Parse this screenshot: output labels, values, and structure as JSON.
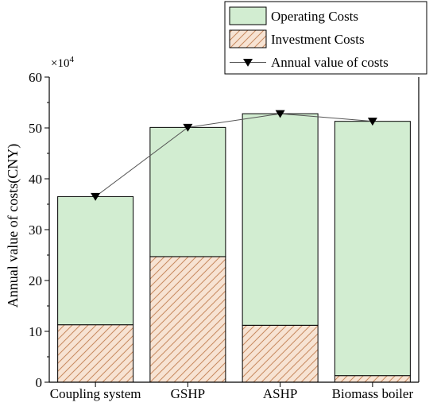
{
  "chart_data": {
    "type": "bar",
    "stacked": true,
    "title": "",
    "xlabel": "",
    "ylabel": "Annual value of costs(CNY)",
    "y_multiplier": {
      "base": "×10",
      "exp": "4"
    },
    "ylim": [
      0,
      60
    ],
    "yticks": [
      0,
      10,
      20,
      30,
      40,
      50,
      60
    ],
    "categories": [
      "Coupling system",
      "GSHP",
      "ASHP",
      "Biomass boiler"
    ],
    "series": [
      {
        "name": "Investment Costs",
        "type": "bar",
        "pattern": "hatch",
        "color": "#f7e3d3",
        "stroke": "#c88a60",
        "values": [
          11.3,
          24.7,
          11.2,
          1.3
        ]
      },
      {
        "name": "Operating Costs",
        "type": "bar",
        "color": "#d2edd1",
        "values": [
          25.2,
          25.4,
          41.6,
          50.0
        ]
      },
      {
        "name": "Annual value of costs",
        "type": "line",
        "marker": "triangle-down",
        "color": "#555555",
        "values": [
          36.5,
          50.1,
          52.8,
          51.3
        ]
      }
    ],
    "legend": {
      "placement": "top-right",
      "order": [
        "Operating Costs",
        "Investment Costs",
        "Annual value of costs"
      ]
    },
    "grid": false
  }
}
